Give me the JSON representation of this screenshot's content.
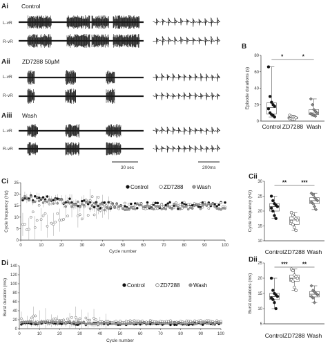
{
  "panels": {
    "Ai": "Ai",
    "Aii": "Aii",
    "Aiii": "Aiii",
    "B": "B",
    "Ci": "Ci",
    "Cii": "Cii",
    "Di": "Di",
    "Dii": "Dii"
  },
  "conditions": {
    "control": "Control",
    "zd": "ZD7288 50µM",
    "wash": "Wash"
  },
  "trace_labels": {
    "left": "L-vR",
    "right": "R-vR"
  },
  "scale_bars": {
    "slow": "30 sec",
    "fast": "200ms"
  },
  "colors": {
    "trace": "#1a1a1a",
    "box": "#555555"
  },
  "chart_data": [
    {
      "id": "B",
      "type": "box",
      "ylabel": "Episode durations (s)",
      "categories": [
        "Control",
        "ZD7288",
        "Wash"
      ],
      "ylim": [
        0,
        80
      ],
      "yticks": [
        0,
        20,
        40,
        60,
        80
      ],
      "significance": [
        {
          "pair": [
            0,
            1
          ],
          "label": "*"
        },
        {
          "pair": [
            1,
            2
          ],
          "label": "*"
        }
      ],
      "points": [
        [
          66,
          30,
          23,
          20,
          18,
          15,
          10,
          8,
          7,
          5
        ],
        [
          7,
          6,
          5,
          5,
          4,
          3,
          3,
          2,
          2
        ],
        [
          27,
          20,
          14,
          12,
          10,
          9,
          8,
          7,
          6
        ]
      ]
    },
    {
      "id": "Ci",
      "type": "scatter",
      "xlabel": "Cycle number",
      "ylabel": "Cycle frequency (Hz)",
      "xlim": [
        0,
        100
      ],
      "ylim": [
        0,
        25
      ],
      "xticks": [
        0,
        10,
        20,
        30,
        40,
        50,
        60,
        70,
        80,
        90,
        100
      ],
      "yticks": [
        0,
        5,
        10,
        15,
        20,
        25
      ],
      "series": [
        {
          "name": "Control",
          "marker": "filled",
          "start": 19,
          "end": 15,
          "len": 100
        },
        {
          "name": "ZD7288",
          "marker": "open",
          "start": 9,
          "end": 15,
          "len": 100
        },
        {
          "name": "Wash",
          "marker": "grey",
          "start": 18,
          "end": 14.5,
          "len": 100
        }
      ]
    },
    {
      "id": "Cii",
      "type": "box",
      "ylabel": "Cycle frequency (Hz)",
      "categories": [
        "Control",
        "ZD7288",
        "Wash"
      ],
      "ylim": [
        10,
        30
      ],
      "yticks": [
        10,
        15,
        20,
        25,
        30
      ],
      "significance": [
        {
          "pair": [
            0,
            1
          ],
          "label": "**"
        },
        {
          "pair": [
            1,
            2
          ],
          "label": "***"
        }
      ],
      "points": [
        [
          25,
          23.5,
          22.5,
          22,
          21.5,
          21,
          20,
          18.5,
          17.5
        ],
        [
          19.5,
          18.5,
          18,
          17.5,
          17,
          16.5,
          15.5,
          14.5,
          13.5
        ],
        [
          26,
          25.5,
          24.5,
          24,
          23.5,
          23,
          22.5,
          21.5,
          20.5
        ]
      ]
    },
    {
      "id": "Di",
      "type": "scatter",
      "xlabel": "Cycle number",
      "ylabel": "Burst duration (ms)",
      "xlim": [
        0,
        100
      ],
      "ylim": [
        0,
        140
      ],
      "xticks": [
        0,
        10,
        20,
        30,
        40,
        50,
        60,
        70,
        80,
        90,
        100
      ],
      "yticks": [
        0,
        20,
        40,
        60,
        80,
        100,
        120,
        140
      ],
      "series": [
        {
          "name": "Control",
          "marker": "filled",
          "start": 12,
          "end": 11,
          "len": 100
        },
        {
          "name": "ZD7288",
          "marker": "open",
          "start": 22,
          "end": 16,
          "len": 100
        },
        {
          "name": "Wash",
          "marker": "grey",
          "start": 14,
          "end": 12,
          "len": 100
        }
      ]
    },
    {
      "id": "Dii",
      "type": "box",
      "ylabel": "Burst durations (ms)",
      "categories": [
        "Control",
        "ZD7288",
        "Wash"
      ],
      "ylim": [
        5,
        25
      ],
      "yticks": [
        5,
        10,
        15,
        20,
        25
      ],
      "significance": [
        {
          "pair": [
            0,
            1
          ],
          "label": "***"
        },
        {
          "pair": [
            1,
            2
          ],
          "label": "**"
        }
      ],
      "points": [
        [
          20,
          16,
          15,
          14.5,
          14,
          13.5,
          13,
          12,
          10
        ],
        [
          23,
          22.5,
          21,
          20.5,
          20,
          19.5,
          19,
          17,
          16
        ],
        [
          17.5,
          16,
          15.5,
          15,
          14.5,
          14,
          13.5,
          12
        ]
      ]
    }
  ]
}
